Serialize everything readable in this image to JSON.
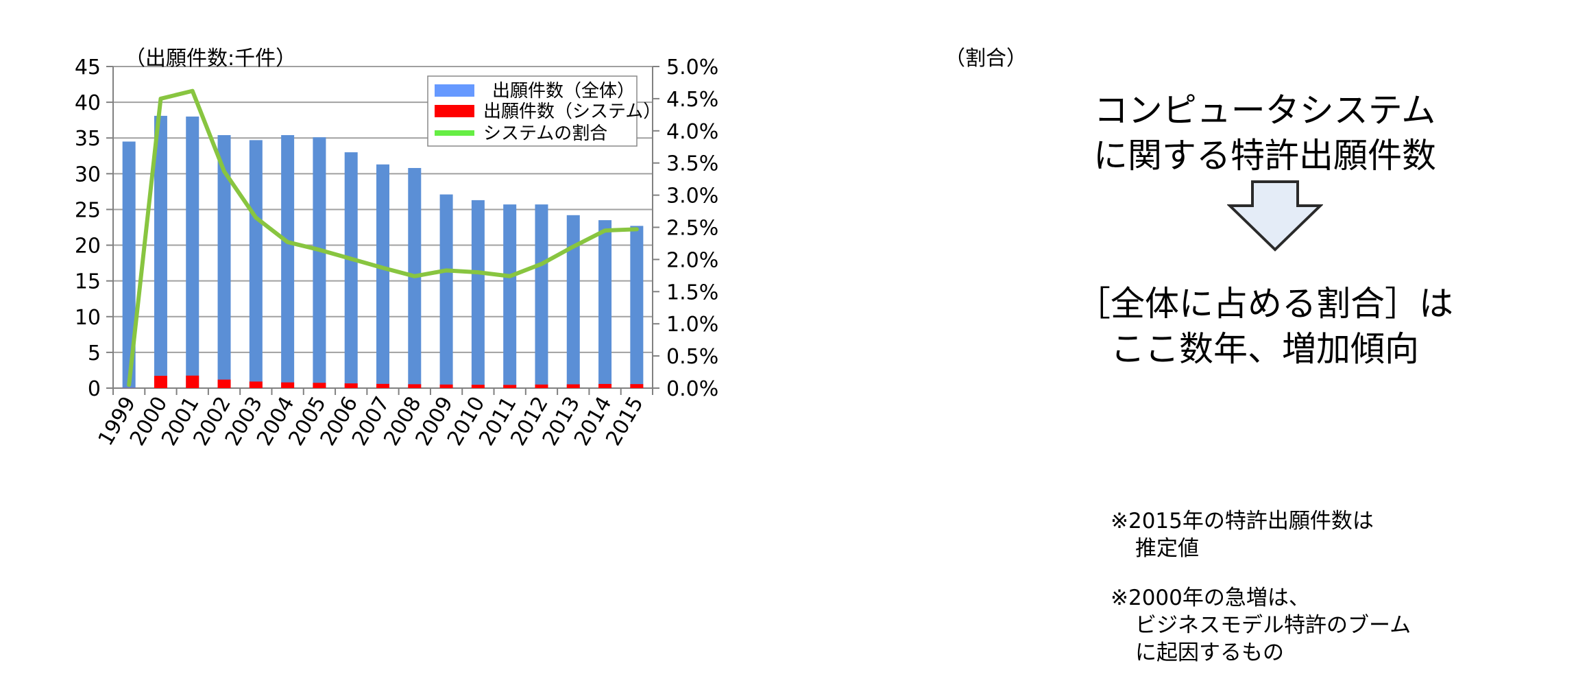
{
  "chart_data": {
    "type": "bar",
    "categories": [
      "1999",
      "2000",
      "2001",
      "2002",
      "2003",
      "2004",
      "2005",
      "2006",
      "2007",
      "2008",
      "2009",
      "2010",
      "2011",
      "2012",
      "2013",
      "2014",
      "2015"
    ],
    "series": [
      {
        "name": "出願件数(全体)",
        "kind": "bar",
        "axis": "left",
        "color": "#5b8fd6",
        "legend_color": "#6699ff",
        "values": [
          34.5,
          38.1,
          38.0,
          35.4,
          34.7,
          35.4,
          35.1,
          33.0,
          31.3,
          30.8,
          27.1,
          26.3,
          25.7,
          25.7,
          24.2,
          23.5,
          22.7
        ]
      },
      {
        "name": "出願件数(システム)",
        "kind": "bar",
        "axis": "left",
        "color": "#ff0000",
        "values": [
          0.02,
          1.72,
          1.75,
          1.19,
          0.92,
          0.8,
          0.74,
          0.66,
          0.59,
          0.54,
          0.5,
          0.47,
          0.45,
          0.5,
          0.53,
          0.58,
          0.56
        ]
      },
      {
        "name": "システムの割合",
        "kind": "line",
        "axis": "right",
        "color": "#88c540",
        "legend_color": "#66ee44",
        "values": [
          0.05,
          4.5,
          4.62,
          3.37,
          2.65,
          2.27,
          2.15,
          2.01,
          1.87,
          1.74,
          1.83,
          1.8,
          1.74,
          1.93,
          2.2,
          2.45,
          2.47
        ]
      }
    ],
    "y_left": {
      "label": "（出願件数:千件）",
      "ylim": [
        0,
        45
      ],
      "ticks": [
        "0",
        "5",
        "10",
        "15",
        "20",
        "25",
        "30",
        "35",
        "40",
        "45"
      ]
    },
    "y_right": {
      "label": "（割合）",
      "ylim": [
        0,
        5
      ],
      "ticks": [
        "0.0%",
        "0.5%",
        "1.0%",
        "1.5%",
        "2.0%",
        "2.5%",
        "3.0%",
        "3.5%",
        "4.0%",
        "4.5%",
        "5.0%"
      ]
    },
    "grid": true,
    "legend_position": "top-right",
    "legend": [
      "出願件数（全体）",
      "出願件数（システム）",
      "システムの割合"
    ]
  },
  "side": {
    "title_line1": "コンピュータシステム",
    "title_line2": "に関する特許出願件数",
    "conclusion_line1": "［全体に占める割合］は",
    "conclusion_line2": "ここ数年、増加傾向"
  },
  "notes": {
    "note1_line1": "※2015年の特許出願件数は",
    "note1_line2": "推定値",
    "note2_line1": "※2000年の急増は、",
    "note2_line2": "ビジネスモデル特許のブーム",
    "note2_line3": "に起因するもの"
  },
  "colors": {
    "arrow_fill": "#e4ecf7",
    "arrow_stroke": "#2a2a2a",
    "grid": "#a0a0a0",
    "axis": "#808080"
  }
}
